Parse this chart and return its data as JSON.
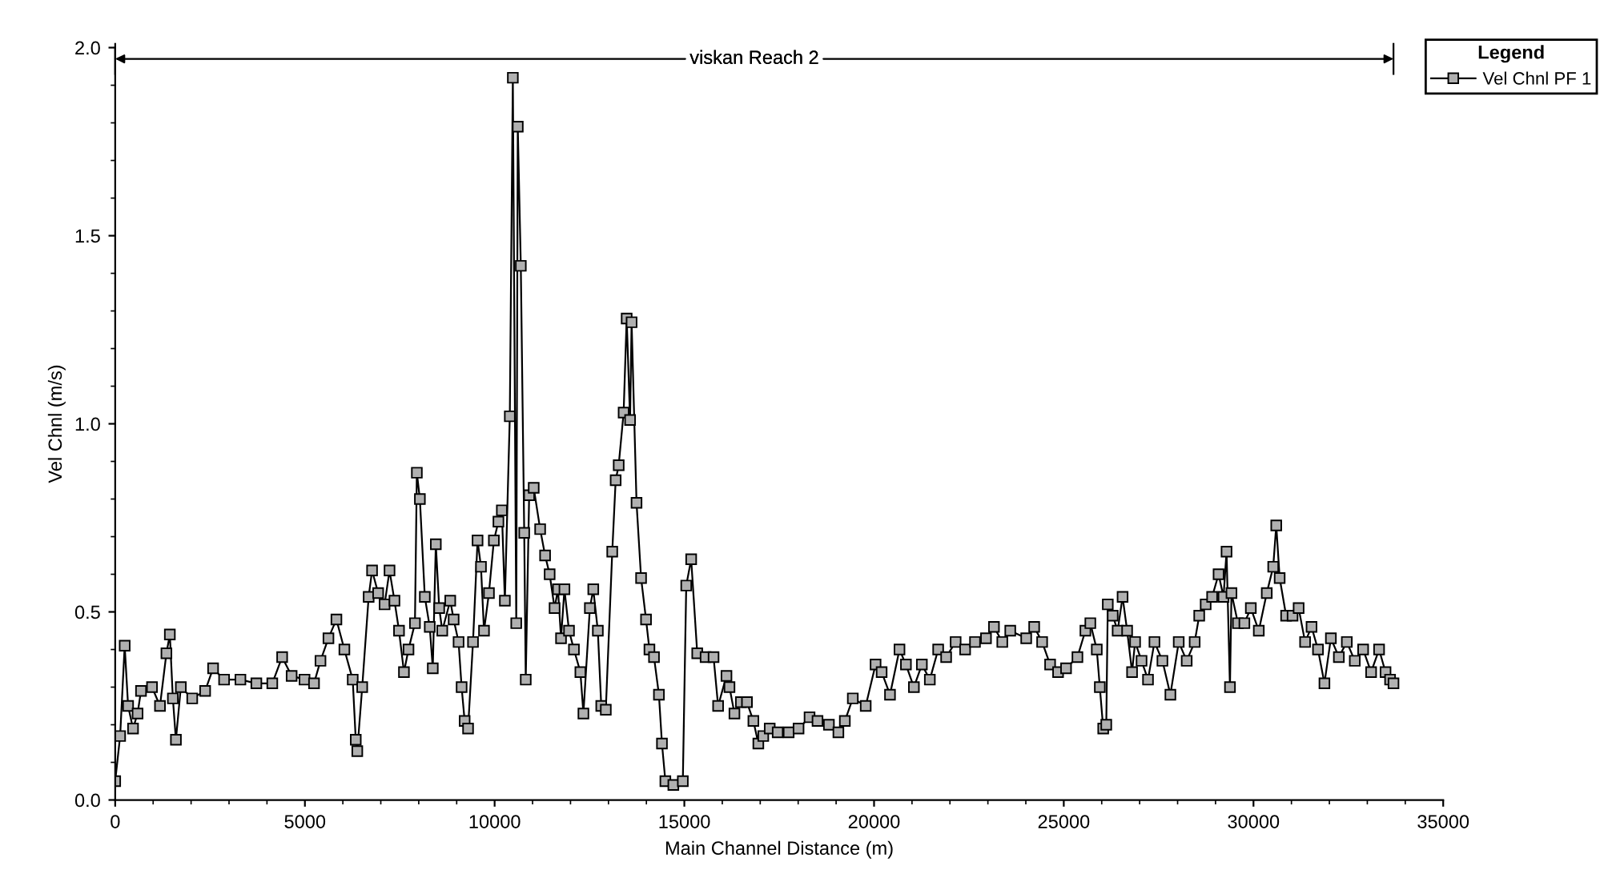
{
  "chart_data": {
    "type": "line",
    "xlabel": "Main Channel Distance (m)",
    "ylabel": "Vel Chnl (m/s)",
    "legend_title": "Legend",
    "xlim": [
      0,
      35000
    ],
    "xticks": [
      0,
      5000,
      10000,
      15000,
      20000,
      25000,
      30000,
      35000
    ],
    "ylim": [
      0,
      2.0
    ],
    "yticks": [
      {
        "value": 0,
        "label": "0.0"
      },
      {
        "value": 0.5,
        "label": "0.5"
      },
      {
        "value": 1.0,
        "label": "1.0"
      },
      {
        "value": 1.5,
        "label": "1.5"
      },
      {
        "value": 2.0,
        "label": "2.0"
      }
    ],
    "marker": "square",
    "line_style": "solid",
    "legend": "top right",
    "grid": false,
    "annotations": [
      "viskan Reach 2"
    ],
    "series": [
      {
        "name": "Vel Chnl PF 1",
        "color": "#000000",
        "x": [
          0,
          130,
          250,
          340,
          470,
          590,
          680,
          970,
          1180,
          1350,
          1440,
          1520,
          1600,
          1730,
          2030,
          2370,
          2580,
          2870,
          3300,
          3720,
          4140,
          4400,
          4650,
          4990,
          5240,
          5410,
          5620,
          5830,
          6040,
          6260,
          6340,
          6380,
          6510,
          6680,
          6770,
          6930,
          7100,
          7230,
          7360,
          7480,
          7610,
          7730,
          7900,
          7950,
          8030,
          8160,
          8290,
          8370,
          8450,
          8540,
          8620,
          8830,
          8920,
          9050,
          9130,
          9210,
          9300,
          9430,
          9550,
          9640,
          9720,
          9850,
          9980,
          10100,
          10190,
          10270,
          10400,
          10480,
          10570,
          10610,
          10690,
          10780,
          10820,
          10910,
          11030,
          11200,
          11330,
          11450,
          11580,
          11670,
          11750,
          11840,
          11960,
          12090,
          12260,
          12340,
          12510,
          12600,
          12720,
          12810,
          12930,
          13100,
          13190,
          13270,
          13400,
          13480,
          13570,
          13610,
          13740,
          13860,
          13990,
          14080,
          14200,
          14330,
          14410,
          14500,
          14710,
          14960,
          15050,
          15180,
          15340,
          15560,
          15770,
          15890,
          16110,
          16190,
          16320,
          16490,
          16650,
          16820,
          16950,
          17080,
          17250,
          17460,
          17750,
          18010,
          18300,
          18510,
          18810,
          19060,
          19230,
          19440,
          19780,
          20040,
          20200,
          20420,
          20670,
          20840,
          21050,
          21260,
          21470,
          21690,
          21900,
          22150,
          22400,
          22660,
          22950,
          23160,
          23380,
          23590,
          24010,
          24220,
          24430,
          24640,
          24850,
          25060,
          25360,
          25570,
          25700,
          25870,
          25950,
          26040,
          26120,
          26160,
          26290,
          26420,
          26550,
          26670,
          26800,
          26880,
          27050,
          27220,
          27390,
          27600,
          27810,
          28030,
          28240,
          28450,
          28570,
          28740,
          28910,
          29080,
          29210,
          29290,
          29380,
          29420,
          29590,
          29760,
          29930,
          30140,
          30350,
          30520,
          30600,
          30690,
          30860,
          31030,
          31190,
          31360,
          31530,
          31700,
          31870,
          32040,
          32250,
          32460,
          32670,
          32890,
          33100,
          33310,
          33480,
          33600,
          33690
        ],
        "values": [
          0.05,
          0.17,
          0.41,
          0.25,
          0.19,
          0.23,
          0.29,
          0.3,
          0.25,
          0.39,
          0.44,
          0.27,
          0.16,
          0.3,
          0.27,
          0.29,
          0.35,
          0.32,
          0.32,
          0.31,
          0.31,
          0.38,
          0.33,
          0.32,
          0.31,
          0.37,
          0.43,
          0.48,
          0.4,
          0.32,
          0.16,
          0.13,
          0.3,
          0.54,
          0.61,
          0.55,
          0.52,
          0.61,
          0.53,
          0.45,
          0.34,
          0.4,
          0.47,
          0.87,
          0.8,
          0.54,
          0.46,
          0.35,
          0.68,
          0.51,
          0.45,
          0.53,
          0.48,
          0.42,
          0.3,
          0.21,
          0.19,
          0.42,
          0.69,
          0.62,
          0.45,
          0.55,
          0.69,
          0.74,
          0.77,
          0.53,
          1.02,
          1.92,
          0.47,
          1.79,
          1.42,
          0.71,
          0.32,
          0.81,
          0.83,
          0.72,
          0.65,
          0.6,
          0.51,
          0.56,
          0.43,
          0.56,
          0.45,
          0.4,
          0.34,
          0.23,
          0.51,
          0.56,
          0.45,
          0.25,
          0.24,
          0.66,
          0.85,
          0.89,
          1.03,
          1.28,
          1.01,
          1.27,
          0.79,
          0.59,
          0.48,
          0.4,
          0.38,
          0.28,
          0.15,
          0.05,
          0.04,
          0.05,
          0.57,
          0.64,
          0.39,
          0.38,
          0.38,
          0.25,
          0.33,
          0.3,
          0.23,
          0.26,
          0.26,
          0.21,
          0.15,
          0.17,
          0.19,
          0.18,
          0.18,
          0.19,
          0.22,
          0.21,
          0.2,
          0.18,
          0.21,
          0.27,
          0.25,
          0.36,
          0.34,
          0.28,
          0.4,
          0.36,
          0.3,
          0.36,
          0.32,
          0.4,
          0.38,
          0.42,
          0.4,
          0.42,
          0.43,
          0.46,
          0.42,
          0.45,
          0.43,
          0.46,
          0.42,
          0.36,
          0.34,
          0.35,
          0.38,
          0.45,
          0.47,
          0.4,
          0.3,
          0.19,
          0.2,
          0.52,
          0.49,
          0.45,
          0.54,
          0.45,
          0.34,
          0.42,
          0.37,
          0.32,
          0.42,
          0.37,
          0.28,
          0.42,
          0.37,
          0.42,
          0.49,
          0.52,
          0.54,
          0.6,
          0.54,
          0.66,
          0.3,
          0.55,
          0.47,
          0.47,
          0.51,
          0.45,
          0.55,
          0.62,
          0.73,
          0.59,
          0.49,
          0.49,
          0.51,
          0.42,
          0.46,
          0.4,
          0.31,
          0.43,
          0.38,
          0.42,
          0.37,
          0.4,
          0.34,
          0.4,
          0.34,
          0.32,
          0.31
        ]
      }
    ]
  }
}
